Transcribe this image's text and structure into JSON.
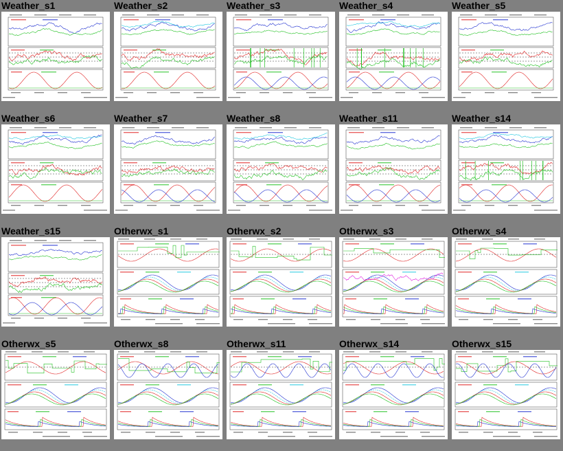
{
  "page": {
    "background": "#808080"
  },
  "thumbnails": [
    {
      "title": "Weather_s1",
      "kind": "weather"
    },
    {
      "title": "Weather_s2",
      "kind": "weather"
    },
    {
      "title": "Weather_s3",
      "kind": "weather"
    },
    {
      "title": "Weather_s4",
      "kind": "weather"
    },
    {
      "title": "Weather_s5",
      "kind": "weather"
    },
    {
      "title": "Weather_s6",
      "kind": "weather"
    },
    {
      "title": "Weather_s7",
      "kind": "weather"
    },
    {
      "title": "Weather_s8",
      "kind": "weather"
    },
    {
      "title": "Weather_s11",
      "kind": "weather"
    },
    {
      "title": "Weather_s14",
      "kind": "weather"
    },
    {
      "title": "Weather_s15",
      "kind": "weather"
    },
    {
      "title": "Otherwx_s1",
      "kind": "otherwx"
    },
    {
      "title": "Otherwx_s2",
      "kind": "otherwx"
    },
    {
      "title": "Otherwx_s3",
      "kind": "otherwx"
    },
    {
      "title": "Otherwx_s4",
      "kind": "otherwx"
    },
    {
      "title": "Otherwx_s5",
      "kind": "otherwx"
    },
    {
      "title": "Otherwx_s8",
      "kind": "otherwx"
    },
    {
      "title": "Otherwx_s11",
      "kind": "otherwx"
    },
    {
      "title": "Otherwx_s14",
      "kind": "otherwx"
    },
    {
      "title": "Otherwx_s15",
      "kind": "otherwx"
    }
  ],
  "colors": {
    "red": "#e02020",
    "green": "#20c020",
    "blue": "#2030d0",
    "cyan": "#20c8e0",
    "magenta": "#e020e0",
    "panel_border": "#333333"
  }
}
